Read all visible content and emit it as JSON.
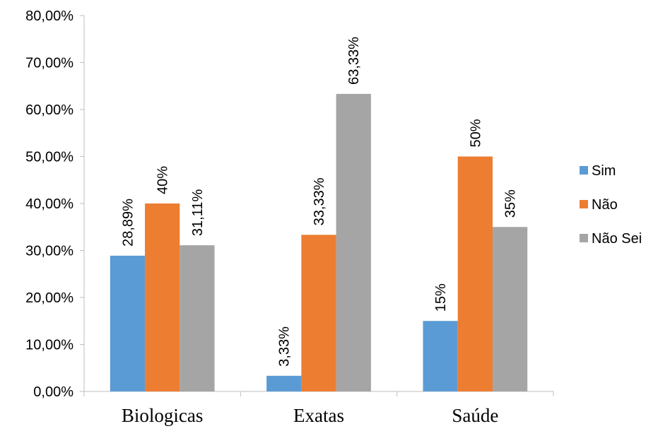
{
  "chart_data": {
    "type": "bar",
    "categories": [
      "Biologicas",
      "Exatas",
      "Saúde"
    ],
    "series": [
      {
        "name": "Sim",
        "values": [
          28.89,
          3.33,
          15
        ],
        "labels": [
          "28,89%",
          "3,33%",
          "15%"
        ],
        "color": "#5b9bd5"
      },
      {
        "name": "Não",
        "values": [
          40,
          33.33,
          50
        ],
        "labels": [
          "40%",
          "33,33%",
          "50%"
        ],
        "color": "#ed7d31"
      },
      {
        "name": "Não Sei",
        "values": [
          31.11,
          63.33,
          35
        ],
        "labels": [
          "31,11%",
          "63,33%",
          "35%"
        ],
        "color": "#a5a5a5"
      }
    ],
    "ylim": [
      0,
      80
    ],
    "yticks": [
      0,
      10,
      20,
      30,
      40,
      50,
      60,
      70,
      80
    ],
    "ytick_labels": [
      "0,00%",
      "10,00%",
      "20,00%",
      "30,00%",
      "40,00%",
      "50,00%",
      "60,00%",
      "70,00%",
      "80,00%"
    ],
    "gridlines": false,
    "legend_position": "right"
  }
}
